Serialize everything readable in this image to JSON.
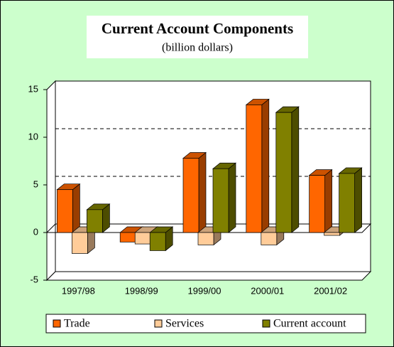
{
  "chart_data": {
    "type": "bar3d",
    "title": "Current Account Components",
    "subtitle": "(billion dollars)",
    "categories": [
      "1997/98",
      "1998/99",
      "1999/00",
      "2000/01",
      "2001/02"
    ],
    "series": [
      {
        "name": "Trade",
        "color": "#ff6600",
        "values": [
          4.5,
          -1.0,
          7.8,
          13.4,
          6.0
        ]
      },
      {
        "name": "Services",
        "color": "#ffcc99",
        "values": [
          -2.2,
          -1.2,
          -1.3,
          -1.3,
          -0.3
        ]
      },
      {
        "name": "Current account",
        "color": "#808000",
        "values": [
          2.4,
          -1.9,
          6.7,
          12.6,
          6.2
        ]
      }
    ],
    "ylim": [
      -5,
      15
    ],
    "yticks": [
      -5,
      0,
      5,
      10,
      15
    ],
    "grid": true,
    "legend": "bottom"
  }
}
